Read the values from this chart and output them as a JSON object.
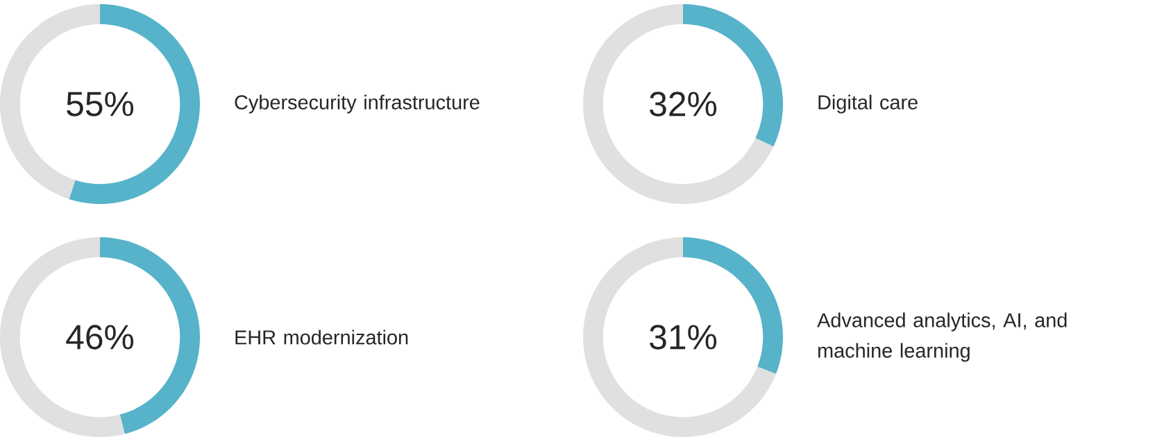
{
  "chart_data": [
    {
      "type": "donut",
      "categories": [
        "Cybersecurity infrastructure",
        null
      ],
      "values": [
        55,
        45
      ],
      "colors": [
        "#56b3c9",
        "#e0e0e0"
      ],
      "annotations": [
        "55%"
      ]
    },
    {
      "type": "donut",
      "categories": [
        "Digital care",
        null
      ],
      "values": [
        32,
        68
      ],
      "colors": [
        "#56b3c9",
        "#e0e0e0"
      ],
      "annotations": [
        "32%"
      ]
    },
    {
      "type": "donut",
      "categories": [
        "EHR modernization",
        null
      ],
      "values": [
        46,
        54
      ],
      "colors": [
        "#56b3c9",
        "#e0e0e0"
      ],
      "annotations": [
        "46%"
      ]
    },
    {
      "type": "donut",
      "categories": [
        "Advanced analytics, AI, and machine learning",
        null
      ],
      "values": [
        31,
        69
      ],
      "colors": [
        "#56b3c9",
        "#e0e0e0"
      ],
      "annotations": [
        "31%"
      ]
    }
  ]
}
